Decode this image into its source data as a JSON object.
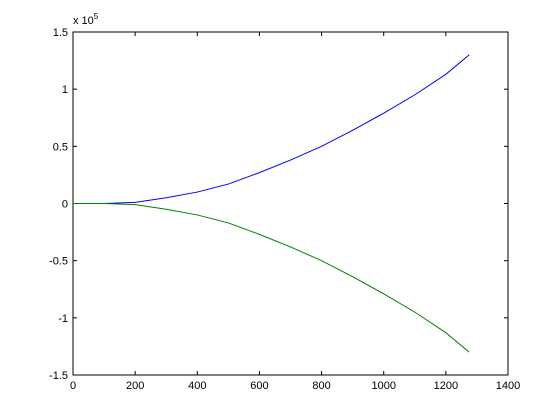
{
  "chart_data": {
    "type": "line",
    "y_scale_label": {
      "base": "x 10",
      "exponent": "5"
    },
    "x": [
      0,
      100,
      200,
      300,
      400,
      500,
      600,
      700,
      800,
      900,
      1000,
      1100,
      1200,
      1275
    ],
    "series": [
      {
        "color": "#0000ff",
        "values": [
          0,
          0,
          0.01,
          0.05,
          0.1,
          0.17,
          0.27,
          0.38,
          0.5,
          0.64,
          0.79,
          0.95,
          1.13,
          1.3
        ]
      },
      {
        "color": "#008000",
        "values": [
          0,
          0,
          -0.01,
          -0.05,
          -0.1,
          -0.17,
          -0.27,
          -0.38,
          -0.5,
          -0.64,
          -0.79,
          -0.95,
          -1.13,
          -1.3
        ]
      }
    ],
    "xlim": [
      0,
      1400
    ],
    "xticks": [
      0,
      200,
      400,
      600,
      800,
      1000,
      1200,
      1400
    ],
    "ylim": [
      -1.5,
      1.5
    ],
    "yticks": [
      -1.5,
      -1,
      -0.5,
      0,
      0.5,
      1,
      1.5
    ]
  }
}
